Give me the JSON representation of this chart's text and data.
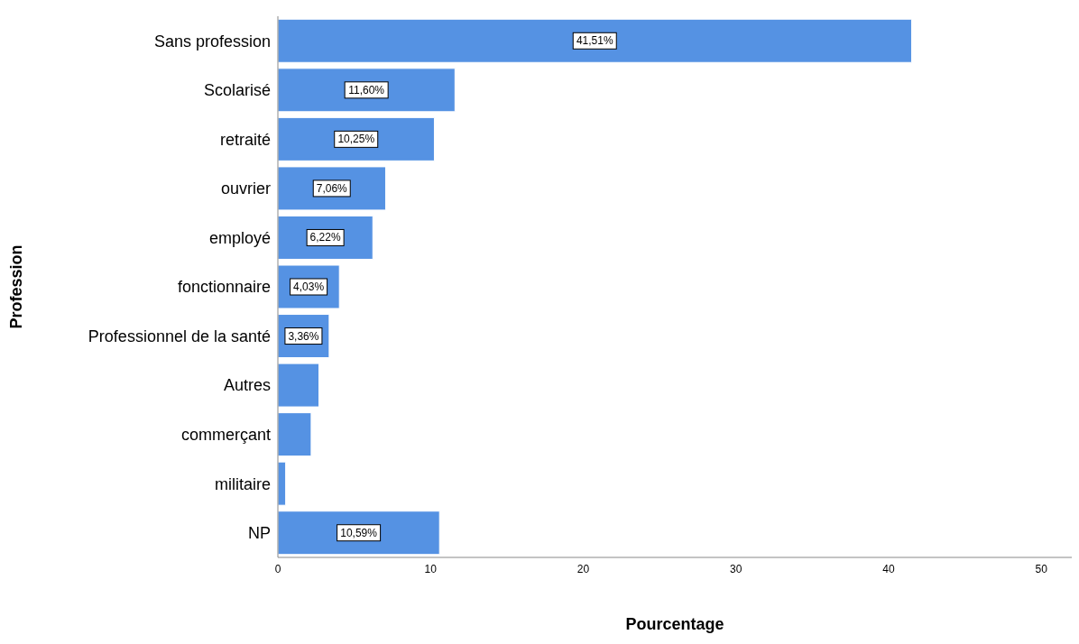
{
  "chart_data": {
    "type": "bar",
    "orientation": "horizontal",
    "xlabel": "Pourcentage",
    "ylabel": "Profession",
    "categories": [
      "Sans profession",
      "Scolarisé",
      "retraité",
      "ouvrier",
      "employé",
      "fonctionnaire",
      "Professionnel de la santé",
      "Autres",
      "commerçant",
      "militaire",
      "NP"
    ],
    "values": [
      41.51,
      11.6,
      10.25,
      7.06,
      6.22,
      4.03,
      3.36,
      2.69,
      2.18,
      0.51,
      10.59
    ],
    "value_labels": [
      "41,51%",
      "11,60%",
      "10,25%",
      "7,06%",
      "6,22%",
      "4,03%",
      "3,36%",
      null,
      null,
      null,
      "10,59%"
    ],
    "color": "#5592e3",
    "xlim": [
      0,
      52
    ],
    "xticks": [
      0,
      10,
      20,
      30,
      40,
      50
    ],
    "grid": false
  }
}
